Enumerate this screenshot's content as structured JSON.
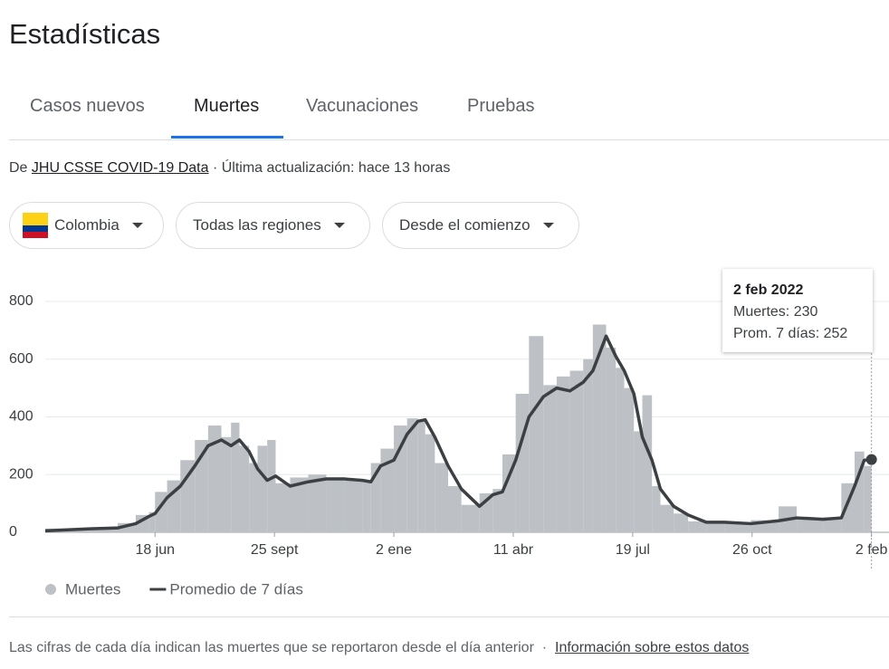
{
  "header": {
    "title": "Estadísticas"
  },
  "tabs": [
    "Casos nuevos",
    "Muertes",
    "Vacunaciones",
    "Pruebas"
  ],
  "selected_tab": 1,
  "source": {
    "prefix": "De",
    "link": "JHU CSSE COVID-19 Data",
    "updated": "· Última actualización: hace 13 horas"
  },
  "filters": [
    "Colombia",
    "Todas las regiones",
    "Desde el comienzo"
  ],
  "chart_data": {
    "type": "bar-line",
    "x": [
      0,
      37,
      60,
      75,
      86,
      91,
      101,
      112,
      124,
      135,
      146,
      154,
      161,
      169,
      176,
      184,
      191,
      203,
      218,
      233,
      248,
      263,
      270,
      278,
      289,
      300,
      309,
      315,
      323,
      334,
      345,
      360,
      371,
      379,
      390,
      401,
      413,
      424,
      435,
      446,
      454,
      465,
      473,
      480,
      488,
      495,
      503,
      510,
      521,
      533,
      548,
      563,
      585,
      608,
      623,
      645,
      660,
      671,
      679,
      685
    ],
    "xlim": [
      0,
      686
    ],
    "xticks": [
      {
        "value": 91,
        "label": "18 jun"
      },
      {
        "value": 190,
        "label": "25 sept"
      },
      {
        "value": 289,
        "label": "2 ene"
      },
      {
        "value": 388,
        "label": "11 abr"
      },
      {
        "value": 487,
        "label": "19 jul"
      },
      {
        "value": 586,
        "label": "26 oct"
      },
      {
        "value": 685,
        "label": "2 feb"
      }
    ],
    "ylim": [
      0,
      800
    ],
    "yticks": [
      0,
      200,
      400,
      600,
      800
    ],
    "grid": true,
    "legend": "bottom-left",
    "series": [
      {
        "name": "Muertes",
        "type": "bar",
        "color": "#bdc1c6",
        "values": [
          5,
          13,
          16,
          32,
          60,
          70,
          140,
          180,
          250,
          320,
          370,
          330,
          380,
          300,
          240,
          300,
          320,
          170,
          190,
          200,
          190,
          185,
          180,
          240,
          290,
          370,
          395,
          390,
          340,
          240,
          160,
          95,
          135,
          150,
          270,
          480,
          680,
          510,
          540,
          560,
          600,
          720,
          640,
          570,
          500,
          350,
          475,
          160,
          95,
          65,
          38,
          37,
          32,
          42,
          90,
          48,
          52,
          170,
          280,
          230
        ]
      },
      {
        "name": "Promedio de 7 días",
        "type": "line",
        "color": "#3c4043",
        "values": [
          5,
          12,
          15,
          30,
          55,
          65,
          120,
          160,
          230,
          300,
          320,
          300,
          320,
          280,
          220,
          180,
          195,
          160,
          175,
          185,
          185,
          180,
          175,
          230,
          250,
          340,
          385,
          390,
          330,
          230,
          150,
          90,
          130,
          140,
          250,
          400,
          470,
          500,
          490,
          520,
          560,
          680,
          610,
          560,
          480,
          330,
          250,
          150,
          90,
          60,
          35,
          35,
          30,
          40,
          50,
          45,
          50,
          160,
          250,
          252
        ]
      }
    ],
    "tooltip": {
      "title": "2 feb 2022",
      "rows": [
        {
          "label": "Muertes:",
          "value": 230
        },
        {
          "label": "Prom. 7 días:",
          "value": 252
        }
      ]
    }
  },
  "footer": {
    "note": "Las cifras de cada día indican las muertes que se reportaron desde el día anterior",
    "separator": "·",
    "link": "Información sobre estos datos"
  }
}
